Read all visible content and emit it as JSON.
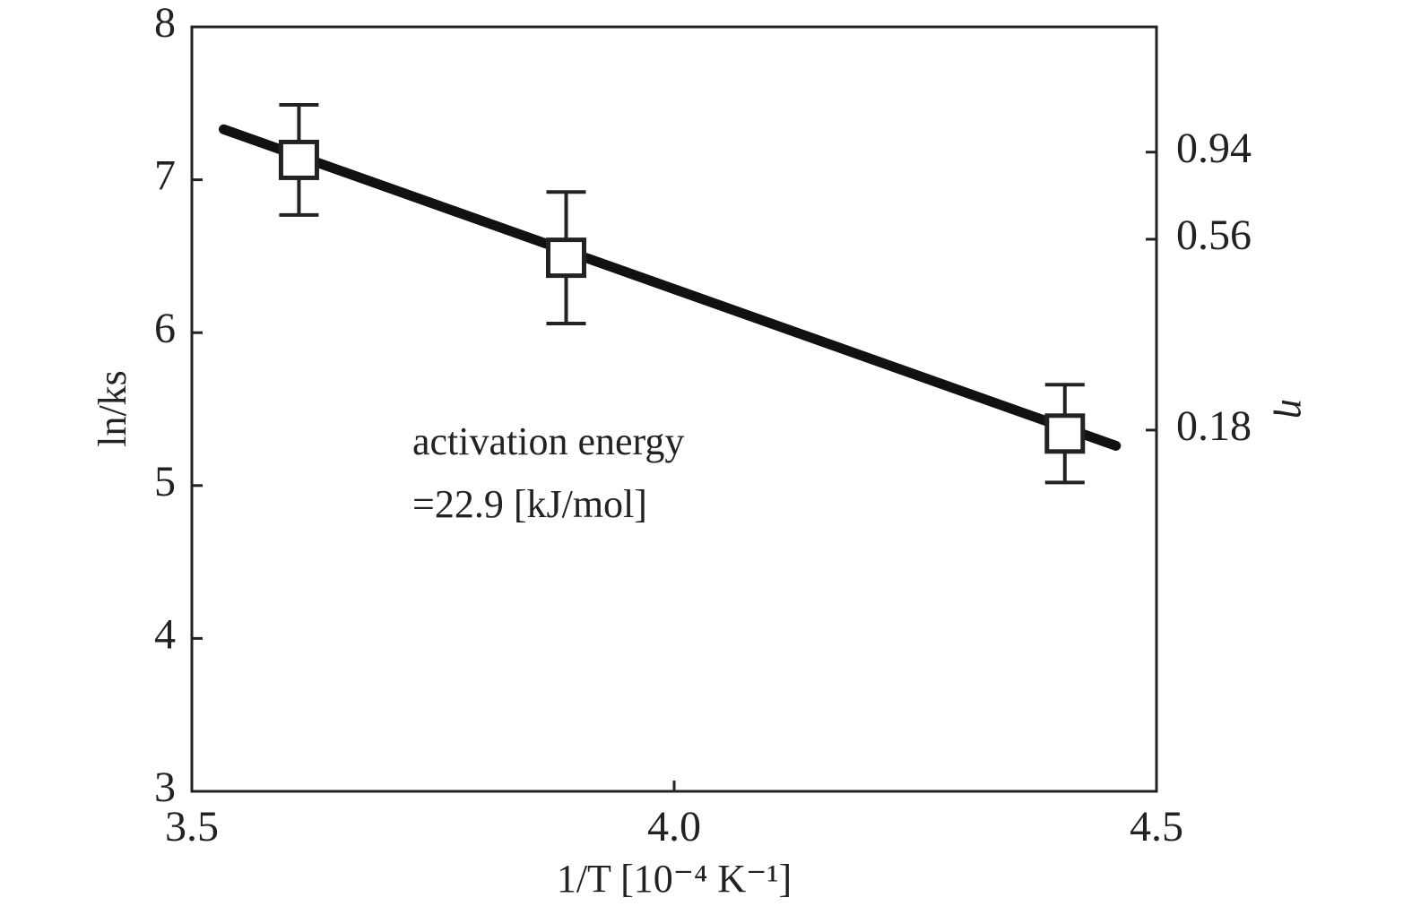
{
  "chart_data": {
    "type": "scatter",
    "xlabel": "1/T [10⁻⁴ K⁻¹]",
    "ylabel": "ln/ks",
    "y2label": "η",
    "annotations": [
      "activation energy",
      "=22.9 [kJ/mol]"
    ],
    "x": [
      3.611,
      3.888,
      4.405
    ],
    "series": [
      {
        "color": "#222222",
        "values": [
          7.13,
          6.49,
          5.34
        ],
        "errors": [
          0.36,
          0.43,
          0.32
        ]
      }
    ],
    "fit_line": {
      "color": "#111111",
      "x": [
        3.533,
        4.458
      ],
      "values": [
        7.33,
        5.26
      ]
    },
    "xlim": [
      3.5,
      4.5
    ],
    "xticks": [
      3.5,
      {
        "value": 4,
        "label": "4.0"
      },
      4.5
    ],
    "ylim": [
      3,
      8
    ],
    "yticks": [
      3,
      4,
      5,
      6,
      7,
      8
    ],
    "y2lim": [
      0.021,
      1.98
    ],
    "y2scale": "log",
    "y2ticks": [
      0.94,
      0.56,
      0.18
    ],
    "grid": false
  }
}
